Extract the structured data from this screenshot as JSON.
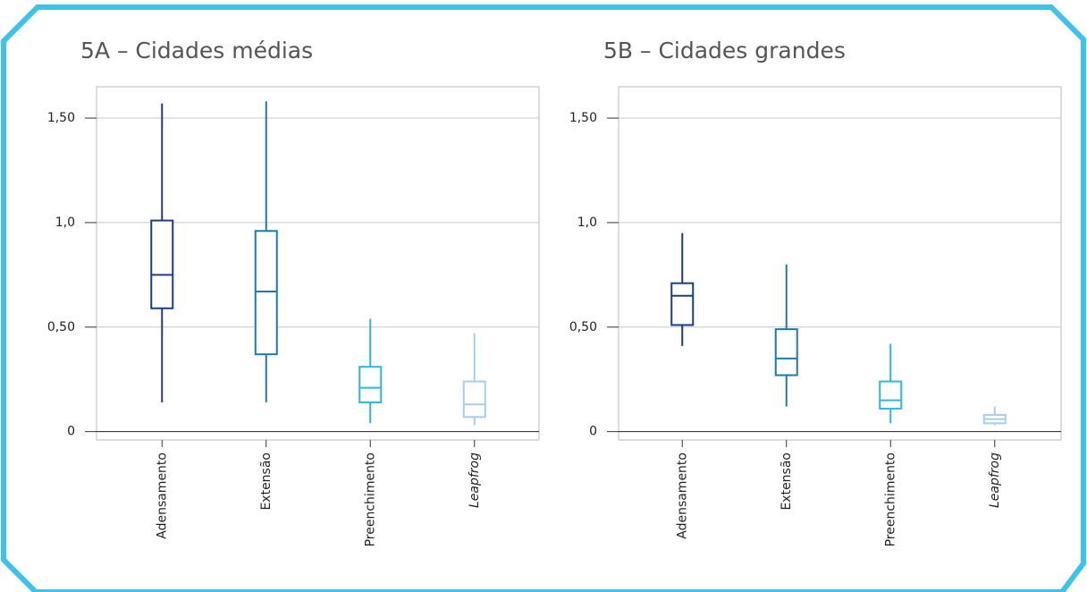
{
  "chart_data": [
    {
      "type": "box",
      "title": "5A – Cidades médias",
      "categories": [
        "Adensamento",
        "Extensão",
        "Preenchimento",
        "Leapfrog"
      ],
      "boxes": [
        {
          "min": 0.14,
          "q1": 0.59,
          "median": 0.75,
          "q3": 1.01,
          "max": 1.57,
          "color": "#1b3f7e"
        },
        {
          "min": 0.14,
          "q1": 0.37,
          "median": 0.67,
          "q3": 0.96,
          "max": 1.58,
          "color": "#1f7aaa"
        },
        {
          "min": 0.04,
          "q1": 0.14,
          "median": 0.21,
          "q3": 0.31,
          "max": 0.54,
          "color": "#2eb6e4"
        },
        {
          "min": 0.03,
          "q1": 0.07,
          "median": 0.13,
          "q3": 0.24,
          "max": 0.47,
          "color": "#a9cdea"
        }
      ],
      "ylim": [
        -0.04,
        1.65
      ],
      "yticks": [
        0,
        {
          "value": 0.5,
          "label": "0,50"
        },
        {
          "value": 1.0,
          "label": "1,0"
        },
        {
          "value": 1.5,
          "label": "1,50"
        }
      ],
      "grid": true
    },
    {
      "type": "box",
      "title": "5B – Cidades grandes",
      "categories": [
        "Adensamento",
        "Extensão",
        "Preenchimento",
        "Leapfrog"
      ],
      "boxes": [
        {
          "min": 0.41,
          "q1": 0.51,
          "median": 0.65,
          "q3": 0.71,
          "max": 0.95,
          "color": "#1b3f7e"
        },
        {
          "min": 0.12,
          "q1": 0.27,
          "median": 0.35,
          "q3": 0.49,
          "max": 0.8,
          "color": "#1f7aaa"
        },
        {
          "min": 0.04,
          "q1": 0.11,
          "median": 0.15,
          "q3": 0.24,
          "max": 0.42,
          "color": "#2eb6e4"
        },
        {
          "min": 0.03,
          "q1": 0.04,
          "median": 0.06,
          "q3": 0.08,
          "max": 0.12,
          "color": "#a9cdea"
        }
      ],
      "ylim": [
        -0.04,
        1.65
      ],
      "yticks": [
        0,
        {
          "value": 0.5,
          "label": "0,50"
        },
        {
          "value": 1.0,
          "label": "1,0"
        },
        {
          "value": 1.5,
          "label": "1,50"
        }
      ],
      "grid": true
    }
  ]
}
